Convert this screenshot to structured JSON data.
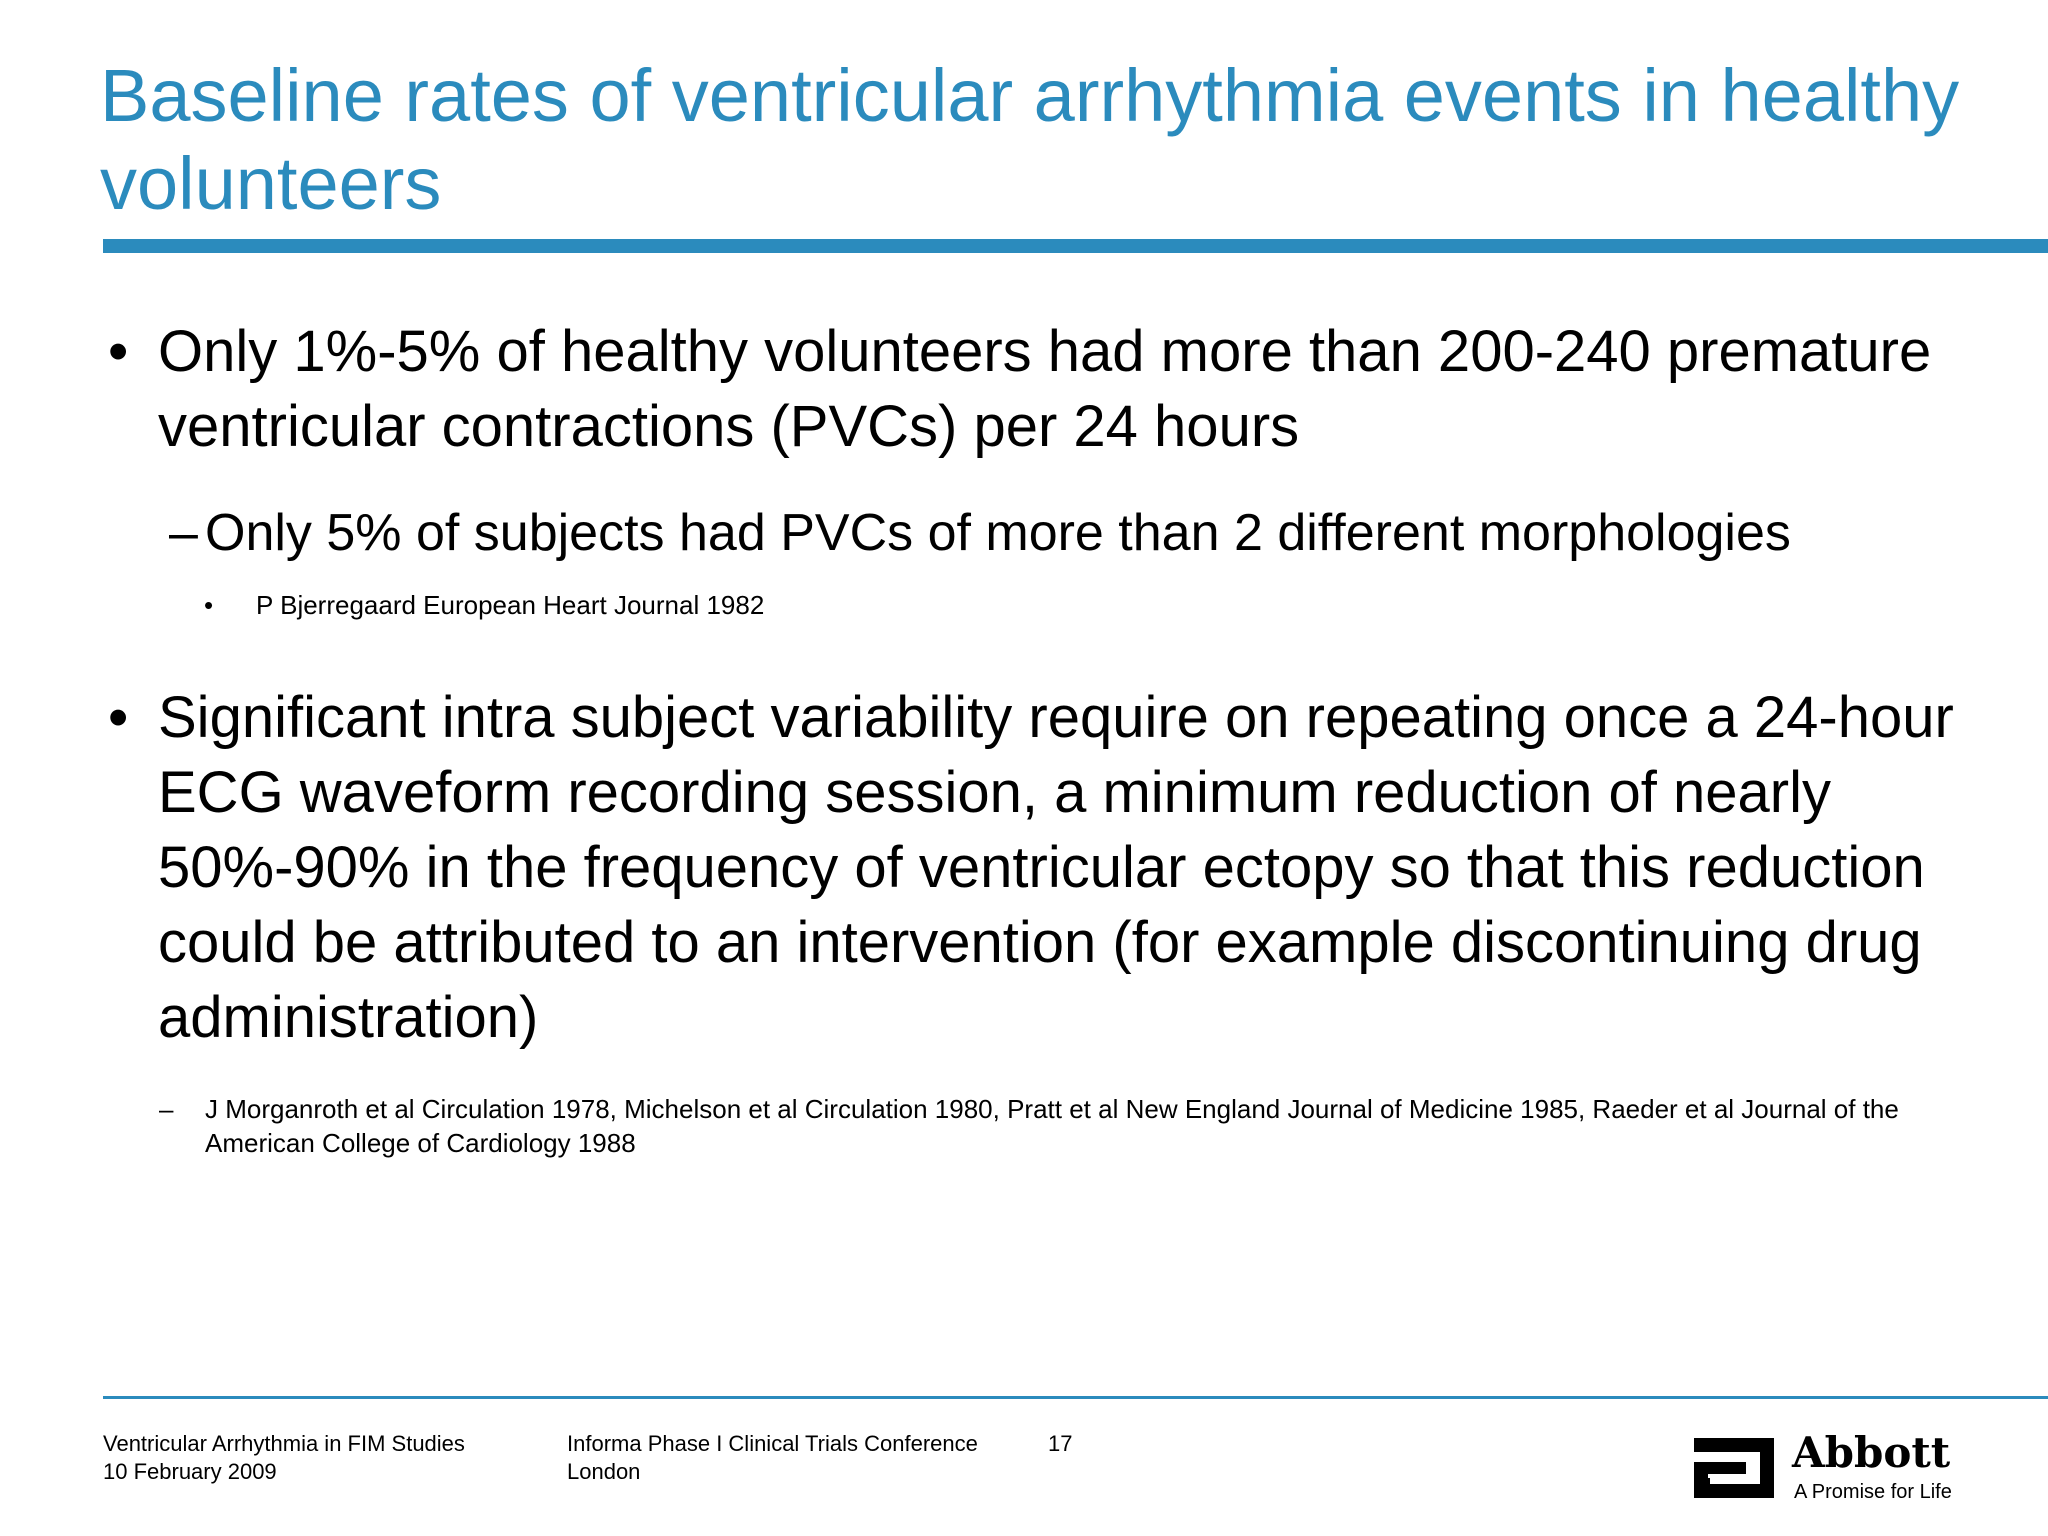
{
  "slide": {
    "title": "Baseline rates of ventricular arrhythmia events in healthy volunteers",
    "accent_color": "#2b8bbd",
    "bullets": {
      "b1": {
        "marker": "•",
        "text": "Only 1%-5% of healthy volunteers had more than 200-240 premature ventricular contractions (PVCs) per 24 hours"
      },
      "b1_sub": {
        "marker": "–",
        "text": "Only 5% of subjects had PVCs of more than 2 different morphologies"
      },
      "b1_ref": {
        "marker": "•",
        "text": "P Bjerregaard European Heart Journal 1982"
      },
      "b2": {
        "marker": "•",
        "text": "Significant intra subject variability require on repeating once a 24-hour ECG waveform recording session, a minimum reduction of nearly 50%-90% in the frequency of ventricular ectopy so that this reduction could be attributed to an intervention (for example discontinuing drug administration)"
      },
      "b2_ref": {
        "marker": "–",
        "text": "J Morganroth et al Circulation 1978, Michelson et al Circulation 1980, Pratt et al New England Journal of Medicine 1985, Raeder et al Journal of the American College of Cardiology 1988"
      }
    }
  },
  "footer": {
    "left_line1": "Ventricular Arrhythmia in FIM Studies",
    "left_line2": "10 February 2009",
    "center_line1": "Informa Phase I Clinical Trials Conference",
    "center_line2": "London",
    "page_number": "17"
  },
  "logo": {
    "icon": "abbott-logo-icon",
    "wordmark": "Abbott",
    "tagline": "A Promise for Life"
  }
}
